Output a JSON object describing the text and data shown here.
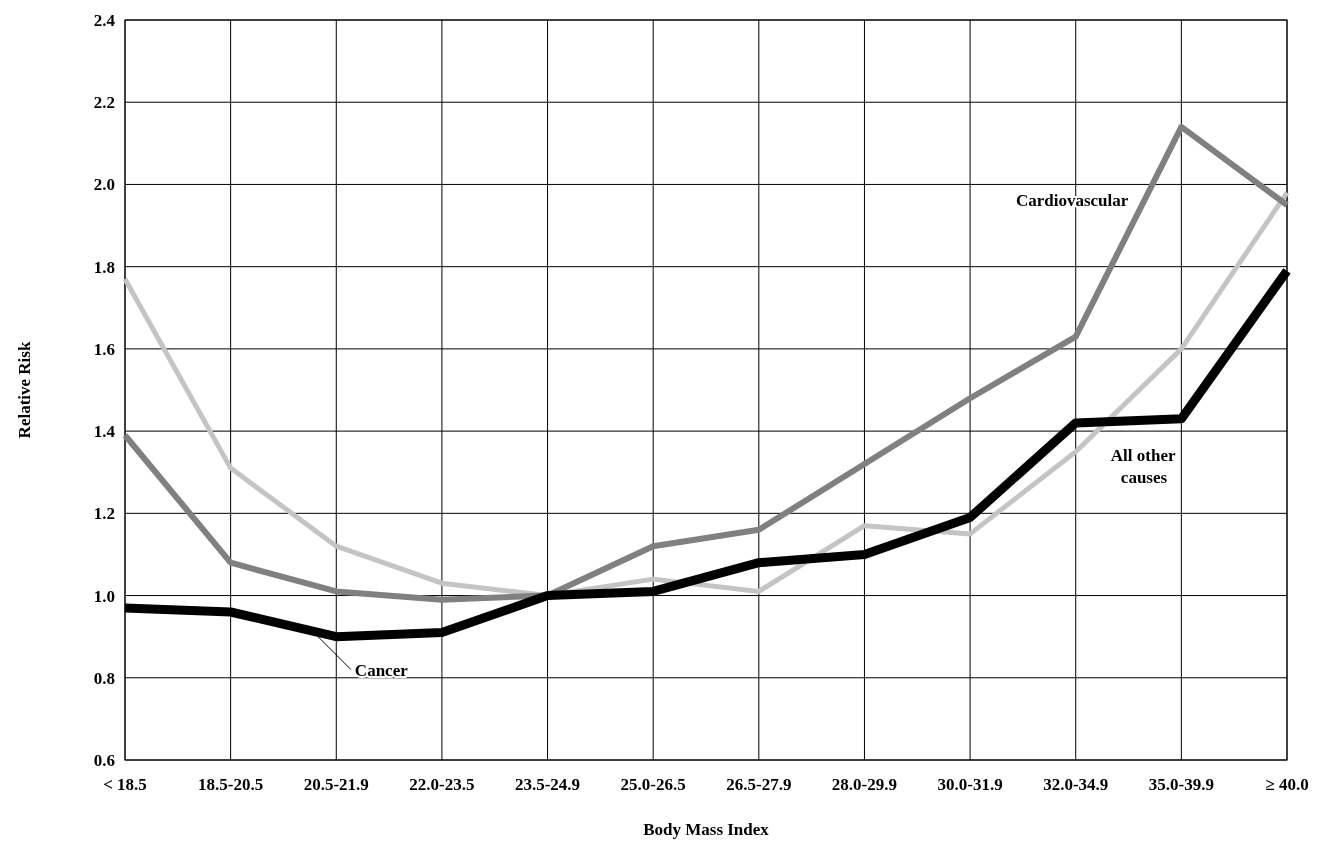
{
  "chart_data": {
    "type": "line",
    "xlabel": "Body Mass Index",
    "ylabel": "Relative Risk",
    "categories": [
      "< 18.5",
      "18.5-20.5",
      "20.5-21.9",
      "22.0-23.5",
      "23.5-24.9",
      "25.0-26.5",
      "26.5-27.9",
      "28.0-29.9",
      "30.0-31.9",
      "32.0-34.9",
      "35.0-39.9",
      "≥ 40.0"
    ],
    "series": [
      {
        "name": "All other causes",
        "color": "#c4c4c4",
        "values": [
          1.77,
          1.31,
          1.12,
          1.03,
          1.0,
          1.04,
          1.01,
          1.17,
          1.15,
          1.35,
          1.6,
          1.98
        ]
      },
      {
        "name": "Cardiovascular",
        "color": "#808080",
        "values": [
          1.39,
          1.08,
          1.01,
          0.99,
          1.0,
          1.12,
          1.16,
          1.32,
          1.48,
          1.63,
          2.14,
          1.95
        ]
      },
      {
        "name": "Cancer",
        "color": "#000000",
        "values": [
          0.97,
          0.96,
          0.9,
          0.91,
          1.0,
          1.01,
          1.08,
          1.1,
          1.19,
          1.42,
          1.43,
          1.79
        ]
      }
    ],
    "ylim": [
      0.6,
      2.4
    ],
    "yticks": [
      {
        "value": 0.6,
        "label": "0.6"
      },
      {
        "value": 0.8,
        "label": "0.8"
      },
      {
        "value": 1.0,
        "label": "1.0"
      },
      {
        "value": 1.2,
        "label": "1.2"
      },
      {
        "value": 1.4,
        "label": "1.4"
      },
      {
        "value": 1.6,
        "label": "1.6"
      },
      {
        "value": 1.8,
        "label": "1.8"
      },
      {
        "value": 2.0,
        "label": "2.0"
      },
      {
        "value": 2.2,
        "label": "2.2"
      },
      {
        "value": 2.4,
        "label": "2.4"
      }
    ],
    "grid": true,
    "legend": false,
    "marker": "none",
    "line_style": "solid"
  }
}
